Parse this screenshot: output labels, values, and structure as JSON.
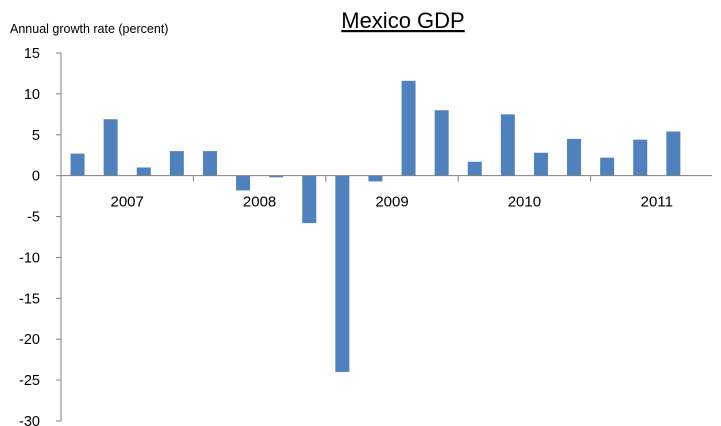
{
  "chart_data": {
    "type": "bar",
    "title": "Mexico GDP",
    "ylabel": "Annual growth rate (percent)",
    "xlabel": "",
    "ylim": [
      -30,
      15
    ],
    "yticks": [
      15,
      10,
      5,
      0,
      -5,
      -10,
      -15,
      -20,
      -25,
      -30
    ],
    "year_labels": [
      "2007",
      "2008",
      "2009",
      "2010",
      "2011"
    ],
    "categories": [
      "2007Q1",
      "2007Q2",
      "2007Q3",
      "2007Q4",
      "2008Q1",
      "2008Q2",
      "2008Q3",
      "2008Q4",
      "2009Q1",
      "2009Q2",
      "2009Q3",
      "2009Q4",
      "2010Q1",
      "2010Q2",
      "2010Q3",
      "2010Q4",
      "2011Q1",
      "2011Q2",
      "2011Q3"
    ],
    "values": [
      2.7,
      6.9,
      1.0,
      3.0,
      3.0,
      -1.8,
      -0.2,
      -5.8,
      -24.0,
      -0.7,
      11.6,
      8.0,
      1.7,
      7.5,
      2.8,
      4.5,
      2.2,
      4.4,
      5.4
    ],
    "grid": false,
    "legend": "none",
    "bar_color": "#4F81BD",
    "axis_color": "#808080"
  }
}
